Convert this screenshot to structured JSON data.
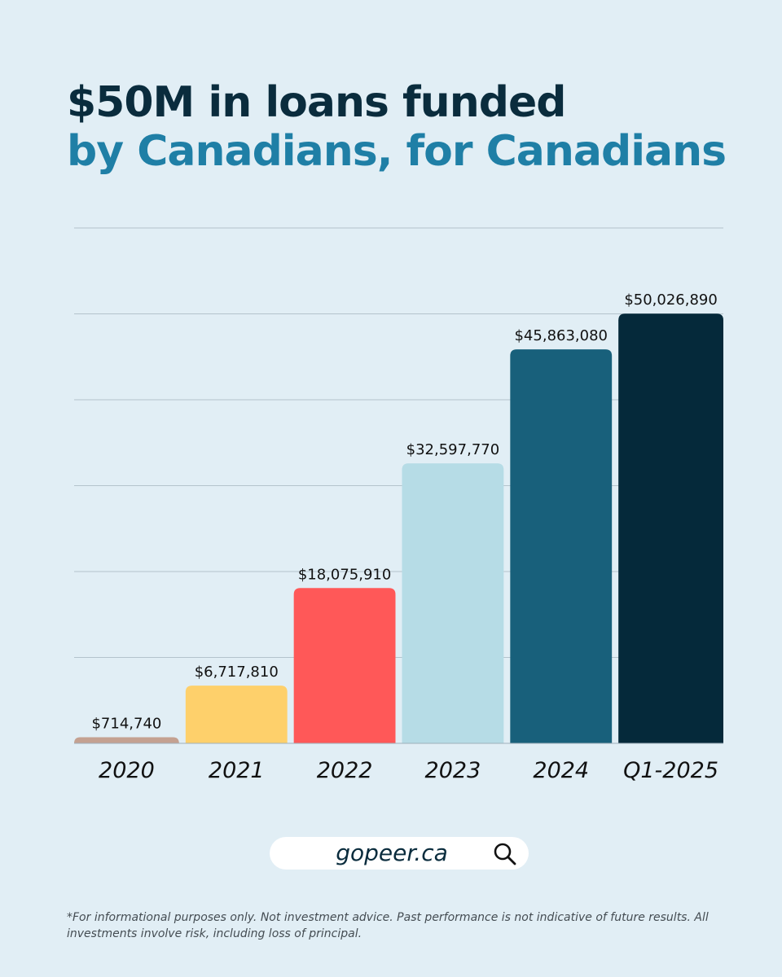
{
  "header": {
    "title_line1": "$50M in loans funded",
    "title_line2": "by Canadians, for Canadians"
  },
  "chart_data": {
    "type": "bar",
    "categories": [
      "2020",
      "2021",
      "2022",
      "2023",
      "2024",
      "Q1-2025"
    ],
    "values": [
      714740,
      6717810,
      18075910,
      32597770,
      45863080,
      50026890
    ],
    "value_labels": [
      "$714,740",
      "$6,717,810",
      "$18,075,910",
      "$32,597,770",
      "$45,863,080",
      "$50,026,890"
    ],
    "colors": [
      "#c4a191",
      "#fed06b",
      "#ff5858",
      "#b6dce6",
      "#18607b",
      "#05293a"
    ],
    "ylim": [
      0,
      60000000
    ],
    "gridlines": true,
    "title": "",
    "xlabel": "",
    "ylabel": ""
  },
  "footer": {
    "url": "gopeer.ca",
    "search_icon": "search-icon",
    "disclaimer": "*For informational purposes only. Not investment advice. Past performance is not indicative of future results. All investments involve risk, including loss of principal."
  }
}
